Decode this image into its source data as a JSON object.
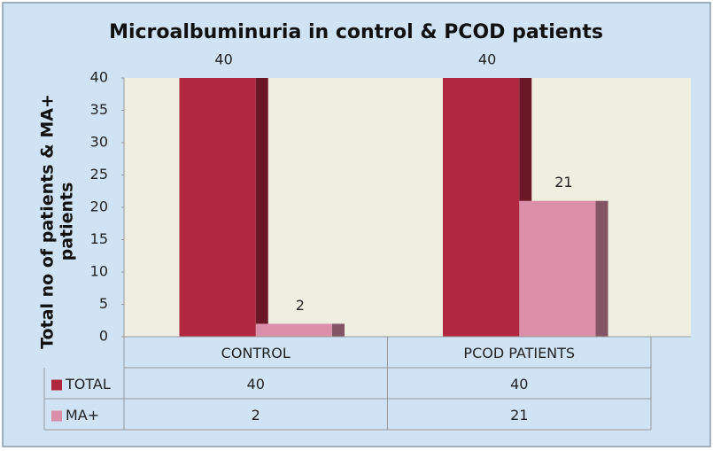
{
  "chart_data": {
    "type": "bar",
    "title": "Microalbuminuria in control & PCOD patients",
    "ylabel": [
      "Total no of patients  & MA+",
      "patients"
    ],
    "categories": [
      "CONTROL",
      "PCOD PATIENTS"
    ],
    "series": [
      {
        "name": "TOTAL",
        "color": "#b0283f",
        "values": [
          40,
          40
        ]
      },
      {
        "name": "MA+",
        "color": "#dc8fa9",
        "values": [
          2,
          21
        ]
      }
    ],
    "ylim": [
      0,
      40
    ],
    "yticks": [
      0,
      5,
      10,
      15,
      20,
      25,
      30,
      35,
      40
    ],
    "grid": false,
    "data_table": true
  }
}
